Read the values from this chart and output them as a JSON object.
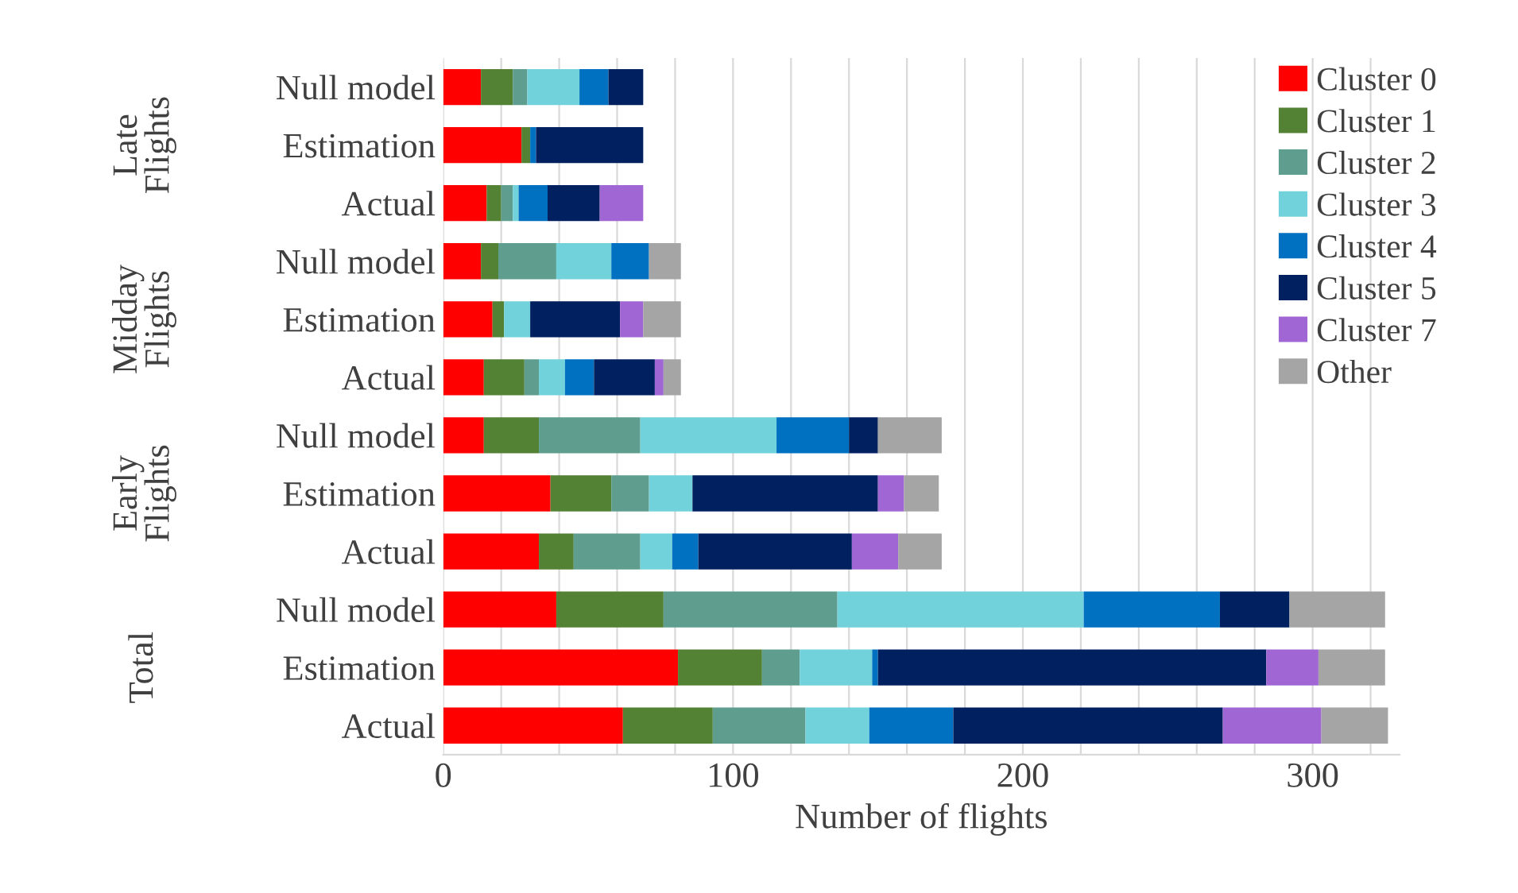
{
  "chart_data": {
    "type": "bar",
    "orientation": "horizontal",
    "stacked": true,
    "categories": [
      "Null model",
      "Estimation",
      "Actual",
      "Null model",
      "Estimation",
      "Actual",
      "Null model",
      "Estimation",
      "Actual",
      "Null model",
      "Estimation",
      "Actual"
    ],
    "annotations": [
      "Late Flights",
      "Midday Flights",
      "Early Flights",
      "Total"
    ],
    "xlabel": "Number of flights",
    "xlim": [
      0,
      330
    ],
    "xticks": [
      0,
      {
        "value": 20,
        "label": null
      },
      {
        "value": 40,
        "label": null
      },
      {
        "value": 60,
        "label": null
      },
      {
        "value": 80,
        "label": null
      },
      100,
      {
        "value": 120,
        "label": null
      },
      {
        "value": 140,
        "label": null
      },
      {
        "value": 160,
        "label": null
      },
      {
        "value": 180,
        "label": null
      },
      200,
      {
        "value": 220,
        "label": null
      },
      {
        "value": 240,
        "label": null
      },
      {
        "value": 260,
        "label": null
      },
      {
        "value": 280,
        "label": null
      },
      300,
      {
        "value": 320,
        "label": null
      }
    ],
    "grid": "x",
    "legend": "top right",
    "series": [
      {
        "name": "Cluster 0",
        "color": "#ff0000",
        "values": [
          13,
          27,
          15,
          13,
          17,
          14,
          14,
          37,
          33,
          39,
          81,
          62
        ]
      },
      {
        "name": "Cluster 1",
        "color": "#548235",
        "values": [
          11,
          3,
          5,
          6,
          4,
          14,
          19,
          21,
          12,
          37,
          29,
          31
        ]
      },
      {
        "name": "Cluster 2",
        "color": "#5f9e8f",
        "values": [
          5,
          0,
          4,
          20,
          0,
          5,
          35,
          13,
          23,
          60,
          13,
          32
        ]
      },
      {
        "name": "Cluster 3",
        "color": "#71d2db",
        "values": [
          18,
          0,
          2,
          19,
          9,
          9,
          47,
          15,
          11,
          85,
          25,
          22
        ]
      },
      {
        "name": "Cluster 4",
        "color": "#0070c0",
        "values": [
          10,
          2,
          10,
          13,
          0,
          10,
          25,
          0,
          9,
          47,
          2,
          29
        ]
      },
      {
        "name": "Cluster 5",
        "color": "#002060",
        "values": [
          12,
          37,
          18,
          0,
          31,
          21,
          10,
          64,
          53,
          24,
          134,
          93
        ]
      },
      {
        "name": "Cluster 7",
        "color": "#a066d3",
        "values": [
          0,
          0,
          15,
          0,
          8,
          3,
          0,
          9,
          16,
          0,
          18,
          34
        ]
      },
      {
        "name": "Other",
        "color": "#a5a5a5",
        "values": [
          0,
          0,
          0,
          11,
          13,
          6,
          22,
          12,
          15,
          33,
          23,
          23
        ]
      }
    ]
  }
}
